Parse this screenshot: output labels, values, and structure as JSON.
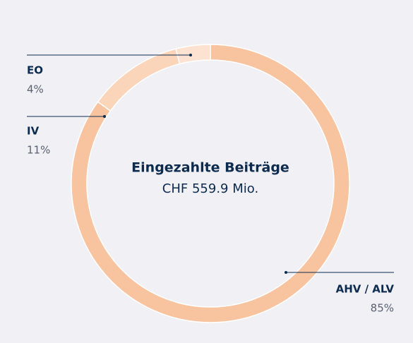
{
  "chart_data": {
    "type": "donut",
    "center_title": "Eingezahlte Beiträge",
    "center_subtitle": "CHF 559.9 Mio.",
    "categories": [
      "AHV / ALV",
      "IV",
      "EO"
    ],
    "values": [
      85,
      11,
      4
    ],
    "value_labels": [
      "85%",
      "11%",
      "4%"
    ],
    "colors": [
      "#f8c4a0",
      "#fbd5ba",
      "#fde2d2"
    ]
  }
}
